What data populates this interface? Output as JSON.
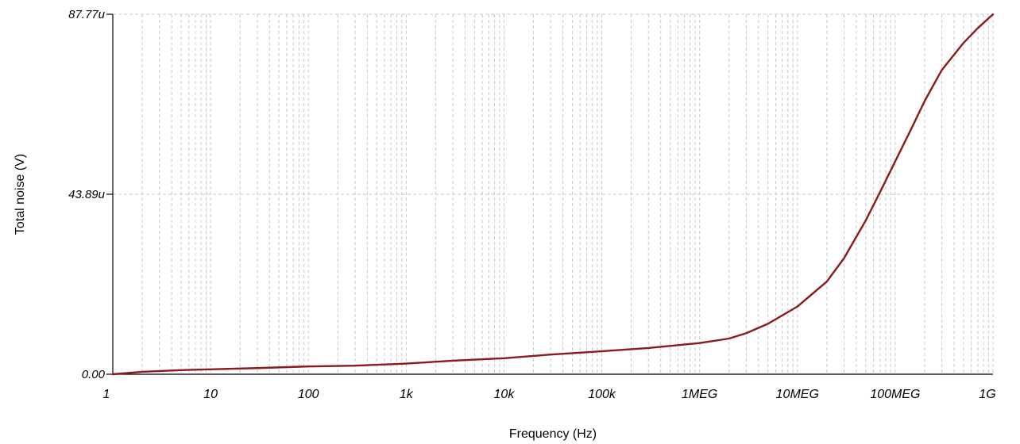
{
  "chart_data": {
    "type": "line",
    "xscale": "log",
    "xlim": [
      1,
      1000000000
    ],
    "ylim": [
      0,
      87.77
    ],
    "y_unit": "u",
    "xlabel": "Frequency (Hz)",
    "ylabel": "Total noise (V)",
    "x_ticks": [
      {
        "value": 1,
        "label": "1"
      },
      {
        "value": 10,
        "label": "10"
      },
      {
        "value": 100,
        "label": "100"
      },
      {
        "value": 1000,
        "label": "1k"
      },
      {
        "value": 10000,
        "label": "10k"
      },
      {
        "value": 100000,
        "label": "100k"
      },
      {
        "value": 1000000,
        "label": "1MEG"
      },
      {
        "value": 10000000,
        "label": "10MEG"
      },
      {
        "value": 100000000,
        "label": "100MEG"
      },
      {
        "value": 1000000000,
        "label": "1G"
      }
    ],
    "y_ticks": [
      {
        "value": 0,
        "label": "0.00"
      },
      {
        "value": 43.89,
        "label": "43.89u"
      },
      {
        "value": 87.77,
        "label": "87.77u"
      }
    ],
    "grid": true,
    "series": [
      {
        "color": "#8b1a1a",
        "x": [
          1,
          2,
          5,
          10,
          30,
          100,
          300,
          1000,
          3000,
          10000,
          30000,
          100000,
          300000,
          1000000,
          2000000,
          3000000,
          5000000,
          10000000,
          20000000,
          30000000,
          50000000,
          70000000,
          100000000,
          150000000,
          200000000,
          300000000,
          500000000,
          700000000,
          1000000000
        ],
        "y": [
          0.0,
          0.6,
          1.0,
          1.2,
          1.5,
          1.9,
          2.1,
          2.6,
          3.3,
          3.9,
          4.8,
          5.6,
          6.4,
          7.6,
          8.7,
          10.0,
          12.3,
          16.5,
          22.6,
          28.3,
          37.5,
          44.4,
          51.9,
          60.4,
          66.6,
          74.2,
          80.8,
          84.4,
          87.77
        ]
      }
    ]
  }
}
